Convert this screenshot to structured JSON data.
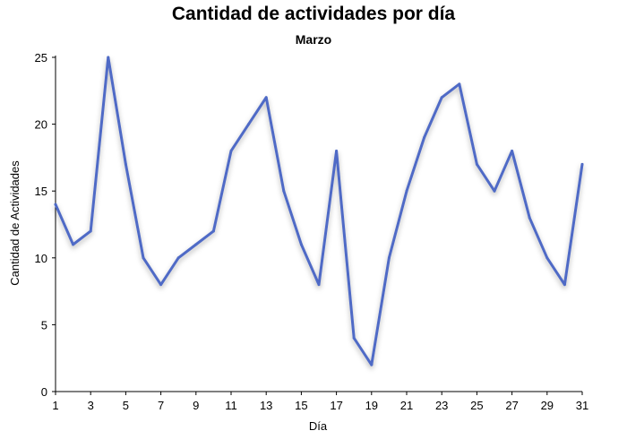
{
  "chart_data": {
    "type": "line",
    "title": "Cantidad de actividades por día",
    "subtitle": "Marzo",
    "xlabel": "Día",
    "ylabel": "Cantidad de Actividades",
    "xlim": [
      1,
      31
    ],
    "ylim": [
      0,
      25
    ],
    "x_ticks": [
      1,
      3,
      5,
      7,
      9,
      11,
      13,
      15,
      17,
      19,
      21,
      23,
      25,
      27,
      29,
      31
    ],
    "y_ticks": [
      0,
      5,
      10,
      15,
      20,
      25
    ],
    "grid": false,
    "legend": "none",
    "series": [
      {
        "color": "#4F6BC6",
        "x": [
          1,
          2,
          3,
          4,
          5,
          6,
          7,
          8,
          9,
          10,
          11,
          12,
          13,
          14,
          15,
          16,
          17,
          18,
          19,
          20,
          21,
          22,
          23,
          24,
          25,
          26,
          27,
          28,
          29,
          30,
          31
        ],
        "y": [
          14,
          11,
          12,
          25,
          17,
          10,
          8,
          10,
          11,
          12,
          18,
          20,
          22,
          15,
          11,
          8,
          18,
          4,
          2,
          10,
          15,
          19,
          22,
          23,
          17,
          15,
          18,
          13,
          10,
          8,
          17
        ]
      }
    ]
  }
}
